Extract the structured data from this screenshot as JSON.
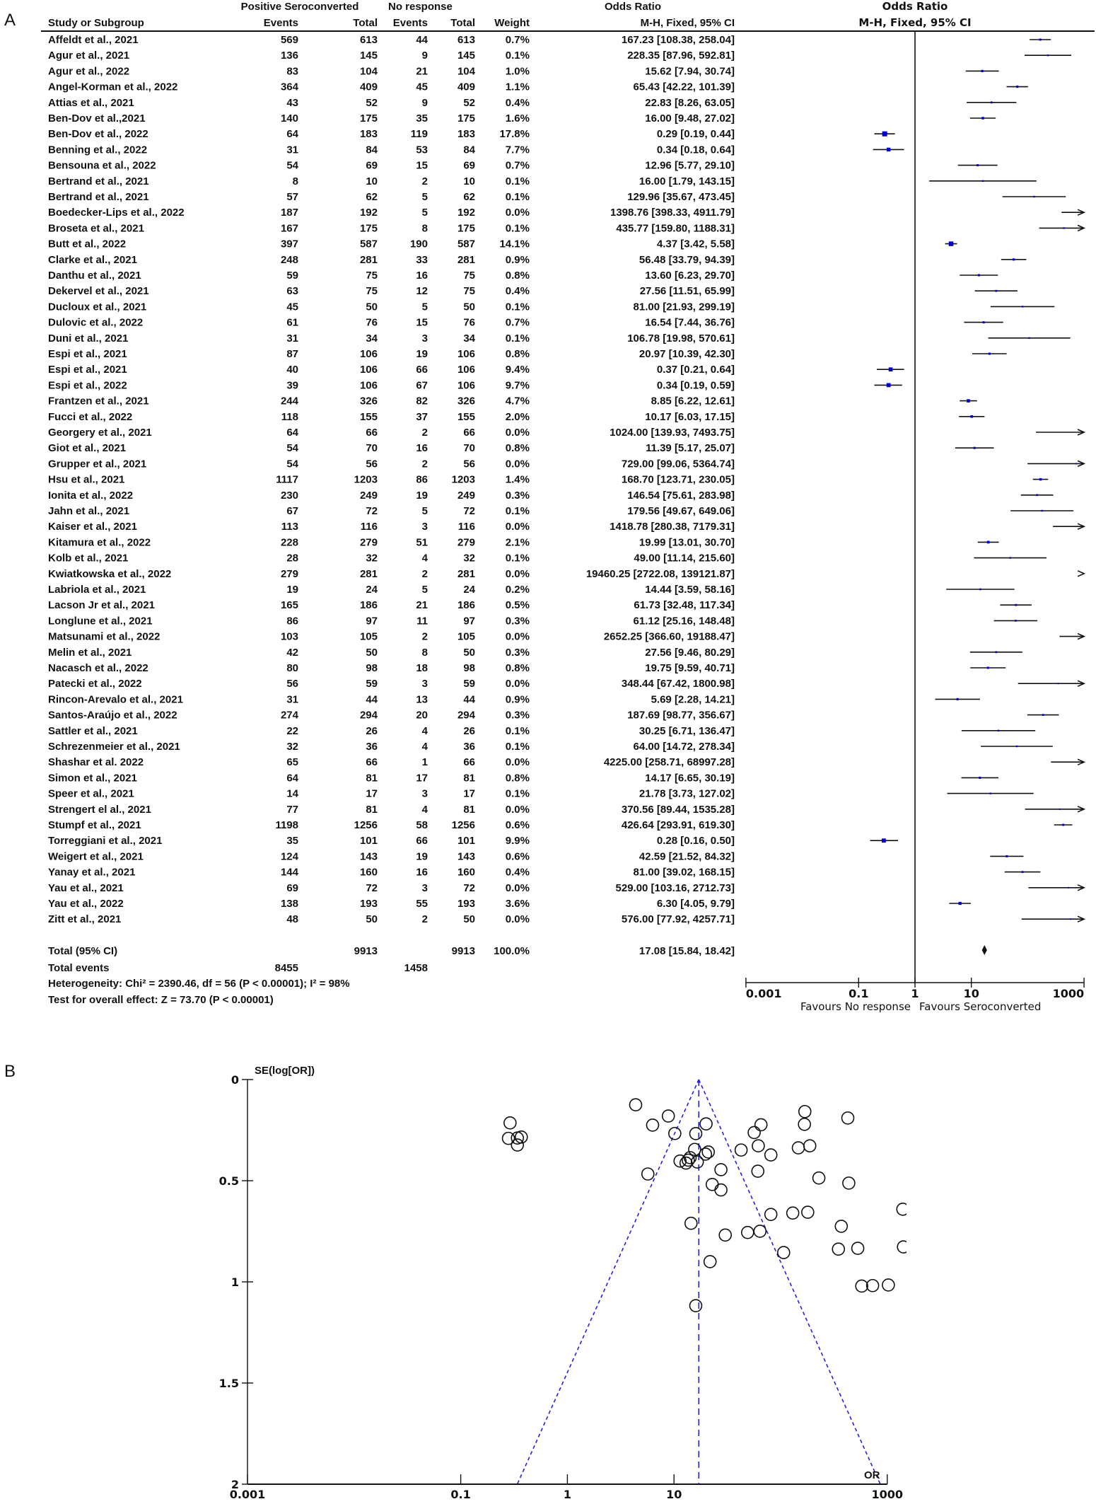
{
  "panels": {
    "a": "A",
    "b": "B"
  },
  "forest_header": {
    "group1": "Positive Seroconverted",
    "group2": "No response",
    "col_study": "Study or Subgroup",
    "col_events1": "Events",
    "col_total1": "Total",
    "col_events2": "Events",
    "col_total2": "Total",
    "col_weight": "Weight",
    "or_title": "Odds Ratio",
    "or_method": "M-H, Fixed, 95% CI",
    "plot_title": "Odds Ratio",
    "plot_method": "M-H, Fixed, 95% CI"
  },
  "summary": {
    "total_label": "Total (95% CI)",
    "total1": "9913",
    "total2": "9913",
    "weight": "100.0%",
    "or_text": "17.08 [15.84, 18.42]",
    "events_label": "Total events",
    "events1": "8455",
    "events2": "1458",
    "heterogeneity": "Heterogeneity: Chi² = 2390.46, df = 56 (P < 0.00001); I² = 98%",
    "overall": "Test for overall effect: Z = 73.70 (P < 0.00001)"
  },
  "colors": {
    "square": "#0000cc",
    "funnel_line": "#2222dd",
    "ink": "#111111"
  },
  "chart_data": [
    {
      "type": "forest",
      "x_scale": "log",
      "xlim": [
        0.001,
        1000
      ],
      "x_ticks": [
        "0.001",
        "0.1",
        "1",
        "10",
        "1000"
      ],
      "favours_left": "Favours No response",
      "favours_right": "Favours Seroconverted",
      "pooled": {
        "or": 17.08,
        "lo": 15.84,
        "hi": 18.42
      },
      "studies": [
        {
          "name": "Affeldt et al., 2021",
          "e1": 569,
          "n1": 613,
          "e2": 44,
          "n2": 613,
          "w": "0.7%",
          "or": 167.23,
          "lo": 108.38,
          "hi": 258.04
        },
        {
          "name": "Agur et al., 2021",
          "e1": 136,
          "n1": 145,
          "e2": 9,
          "n2": 145,
          "w": "0.1%",
          "or": 228.35,
          "lo": 87.96,
          "hi": 592.81
        },
        {
          "name": "Agur et al., 2022",
          "e1": 83,
          "n1": 104,
          "e2": 21,
          "n2": 104,
          "w": "1.0%",
          "or": 15.62,
          "lo": 7.94,
          "hi": 30.74
        },
        {
          "name": "Angel-Korman et al., 2022",
          "e1": 364,
          "n1": 409,
          "e2": 45,
          "n2": 409,
          "w": "1.1%",
          "or": 65.43,
          "lo": 42.22,
          "hi": 101.39
        },
        {
          "name": "Attias et al., 2021",
          "e1": 43,
          "n1": 52,
          "e2": 9,
          "n2": 52,
          "w": "0.4%",
          "or": 22.83,
          "lo": 8.26,
          "hi": 63.05
        },
        {
          "name": "Ben-Dov et al.,2021",
          "e1": 140,
          "n1": 175,
          "e2": 35,
          "n2": 175,
          "w": "1.6%",
          "or": 16.0,
          "lo": 9.48,
          "hi": 27.02
        },
        {
          "name": "Ben-Dov et al., 2022",
          "e1": 64,
          "n1": 183,
          "e2": 119,
          "n2": 183,
          "w": "17.8%",
          "or": 0.29,
          "lo": 0.19,
          "hi": 0.44
        },
        {
          "name": "Benning et al., 2022",
          "e1": 31,
          "n1": 84,
          "e2": 53,
          "n2": 84,
          "w": "7.7%",
          "or": 0.34,
          "lo": 0.18,
          "hi": 0.64
        },
        {
          "name": "Bensouna et al., 2022",
          "e1": 54,
          "n1": 69,
          "e2": 15,
          "n2": 69,
          "w": "0.7%",
          "or": 12.96,
          "lo": 5.77,
          "hi": 29.1
        },
        {
          "name": "Bertrand et al., 2021",
          "e1": 8,
          "n1": 10,
          "e2": 2,
          "n2": 10,
          "w": "0.1%",
          "or": 16.0,
          "lo": 1.79,
          "hi": 143.15
        },
        {
          "name": "Bertrand et al., 2021",
          "e1": 57,
          "n1": 62,
          "e2": 5,
          "n2": 62,
          "w": "0.1%",
          "or": 129.96,
          "lo": 35.67,
          "hi": 473.45
        },
        {
          "name": "Boedecker-Lips et al., 2022",
          "e1": 187,
          "n1": 192,
          "e2": 5,
          "n2": 192,
          "w": "0.0%",
          "or": 1398.76,
          "lo": 398.33,
          "hi": 4911.79
        },
        {
          "name": "Broseta et al., 2021",
          "e1": 167,
          "n1": 175,
          "e2": 8,
          "n2": 175,
          "w": "0.1%",
          "or": 435.77,
          "lo": 159.8,
          "hi": 1188.31
        },
        {
          "name": "Butt et al., 2022",
          "e1": 397,
          "n1": 587,
          "e2": 190,
          "n2": 587,
          "w": "14.1%",
          "or": 4.37,
          "lo": 3.42,
          "hi": 5.58
        },
        {
          "name": "Clarke et al., 2021",
          "e1": 248,
          "n1": 281,
          "e2": 33,
          "n2": 281,
          "w": "0.9%",
          "or": 56.48,
          "lo": 33.79,
          "hi": 94.39
        },
        {
          "name": "Danthu et al., 2021",
          "e1": 59,
          "n1": 75,
          "e2": 16,
          "n2": 75,
          "w": "0.8%",
          "or": 13.6,
          "lo": 6.23,
          "hi": 29.7
        },
        {
          "name": "Dekervel et al., 2021",
          "e1": 63,
          "n1": 75,
          "e2": 12,
          "n2": 75,
          "w": "0.4%",
          "or": 27.56,
          "lo": 11.51,
          "hi": 65.99
        },
        {
          "name": "Ducloux et al., 2021",
          "e1": 45,
          "n1": 50,
          "e2": 5,
          "n2": 50,
          "w": "0.1%",
          "or": 81.0,
          "lo": 21.93,
          "hi": 299.19
        },
        {
          "name": "Dulovic et al., 2022",
          "e1": 61,
          "n1": 76,
          "e2": 15,
          "n2": 76,
          "w": "0.7%",
          "or": 16.54,
          "lo": 7.44,
          "hi": 36.76
        },
        {
          "name": "Duni et al., 2021",
          "e1": 31,
          "n1": 34,
          "e2": 3,
          "n2": 34,
          "w": "0.1%",
          "or": 106.78,
          "lo": 19.98,
          "hi": 570.61
        },
        {
          "name": "Espi et al., 2021",
          "e1": 87,
          "n1": 106,
          "e2": 19,
          "n2": 106,
          "w": "0.8%",
          "or": 20.97,
          "lo": 10.39,
          "hi": 42.3
        },
        {
          "name": "Espi et al., 2021",
          "e1": 40,
          "n1": 106,
          "e2": 66,
          "n2": 106,
          "w": "9.4%",
          "or": 0.37,
          "lo": 0.21,
          "hi": 0.64
        },
        {
          "name": "Espi et al., 2022",
          "e1": 39,
          "n1": 106,
          "e2": 67,
          "n2": 106,
          "w": "9.7%",
          "or": 0.34,
          "lo": 0.19,
          "hi": 0.59
        },
        {
          "name": "Frantzen et al., 2021",
          "e1": 244,
          "n1": 326,
          "e2": 82,
          "n2": 326,
          "w": "4.7%",
          "or": 8.85,
          "lo": 6.22,
          "hi": 12.61
        },
        {
          "name": "Fucci et al., 2022",
          "e1": 118,
          "n1": 155,
          "e2": 37,
          "n2": 155,
          "w": "2.0%",
          "or": 10.17,
          "lo": 6.03,
          "hi": 17.15
        },
        {
          "name": "Georgery et al., 2021",
          "e1": 64,
          "n1": 66,
          "e2": 2,
          "n2": 66,
          "w": "0.0%",
          "or": 1024.0,
          "lo": 139.93,
          "hi": 7493.75
        },
        {
          "name": "Giot et al., 2021",
          "e1": 54,
          "n1": 70,
          "e2": 16,
          "n2": 70,
          "w": "0.8%",
          "or": 11.39,
          "lo": 5.17,
          "hi": 25.07
        },
        {
          "name": "Grupper et al., 2021",
          "e1": 54,
          "n1": 56,
          "e2": 2,
          "n2": 56,
          "w": "0.0%",
          "or": 729.0,
          "lo": 99.06,
          "hi": 5364.74
        },
        {
          "name": "Hsu et al., 2021",
          "e1": 1117,
          "n1": 1203,
          "e2": 86,
          "n2": 1203,
          "w": "1.4%",
          "or": 168.7,
          "lo": 123.71,
          "hi": 230.05
        },
        {
          "name": "Ionita et al., 2022",
          "e1": 230,
          "n1": 249,
          "e2": 19,
          "n2": 249,
          "w": "0.3%",
          "or": 146.54,
          "lo": 75.61,
          "hi": 283.98
        },
        {
          "name": "Jahn et al., 2021",
          "e1": 67,
          "n1": 72,
          "e2": 5,
          "n2": 72,
          "w": "0.1%",
          "or": 179.56,
          "lo": 49.67,
          "hi": 649.06
        },
        {
          "name": "Kaiser et al., 2021",
          "e1": 113,
          "n1": 116,
          "e2": 3,
          "n2": 116,
          "w": "0.0%",
          "or": 1418.78,
          "lo": 280.38,
          "hi": 7179.31
        },
        {
          "name": "Kitamura et al., 2022",
          "e1": 228,
          "n1": 279,
          "e2": 51,
          "n2": 279,
          "w": "2.1%",
          "or": 19.99,
          "lo": 13.01,
          "hi": 30.7
        },
        {
          "name": "Kolb et al., 2021",
          "e1": 28,
          "n1": 32,
          "e2": 4,
          "n2": 32,
          "w": "0.1%",
          "or": 49.0,
          "lo": 11.14,
          "hi": 215.6
        },
        {
          "name": "Kwiatkowska et al., 2022",
          "e1": 279,
          "n1": 281,
          "e2": 2,
          "n2": 281,
          "w": "0.0%",
          "or": 19460.25,
          "lo": 2722.08,
          "hi": 139121.87
        },
        {
          "name": "Labriola et al., 2021",
          "e1": 19,
          "n1": 24,
          "e2": 5,
          "n2": 24,
          "w": "0.2%",
          "or": 14.44,
          "lo": 3.59,
          "hi": 58.16
        },
        {
          "name": "Lacson Jr et al., 2021",
          "e1": 165,
          "n1": 186,
          "e2": 21,
          "n2": 186,
          "w": "0.5%",
          "or": 61.73,
          "lo": 32.48,
          "hi": 117.34
        },
        {
          "name": "Longlune et al., 2021",
          "e1": 86,
          "n1": 97,
          "e2": 11,
          "n2": 97,
          "w": "0.3%",
          "or": 61.12,
          "lo": 25.16,
          "hi": 148.48
        },
        {
          "name": "Matsunami et al., 2022",
          "e1": 103,
          "n1": 105,
          "e2": 2,
          "n2": 105,
          "w": "0.0%",
          "or": 2652.25,
          "lo": 366.6,
          "hi": 19188.47
        },
        {
          "name": "Melin et al., 2021",
          "e1": 42,
          "n1": 50,
          "e2": 8,
          "n2": 50,
          "w": "0.3%",
          "or": 27.56,
          "lo": 9.46,
          "hi": 80.29
        },
        {
          "name": "Nacasch et al., 2022",
          "e1": 80,
          "n1": 98,
          "e2": 18,
          "n2": 98,
          "w": "0.8%",
          "or": 19.75,
          "lo": 9.59,
          "hi": 40.71
        },
        {
          "name": "Patecki et al., 2022",
          "e1": 56,
          "n1": 59,
          "e2": 3,
          "n2": 59,
          "w": "0.0%",
          "or": 348.44,
          "lo": 67.42,
          "hi": 1800.98
        },
        {
          "name": "Rincon-Arevalo et al., 2021",
          "e1": 31,
          "n1": 44,
          "e2": 13,
          "n2": 44,
          "w": "0.9%",
          "or": 5.69,
          "lo": 2.28,
          "hi": 14.21
        },
        {
          "name": "Santos-Araújo et al., 2022",
          "e1": 274,
          "n1": 294,
          "e2": 20,
          "n2": 294,
          "w": "0.3%",
          "or": 187.69,
          "lo": 98.77,
          "hi": 356.67
        },
        {
          "name": "Sattler et al., 2021",
          "e1": 22,
          "n1": 26,
          "e2": 4,
          "n2": 26,
          "w": "0.1%",
          "or": 30.25,
          "lo": 6.71,
          "hi": 136.47
        },
        {
          "name": "Schrezenmeier et al., 2021",
          "e1": 32,
          "n1": 36,
          "e2": 4,
          "n2": 36,
          "w": "0.1%",
          "or": 64.0,
          "lo": 14.72,
          "hi": 278.34
        },
        {
          "name": "Shashar et al. 2022",
          "e1": 65,
          "n1": 66,
          "e2": 1,
          "n2": 66,
          "w": "0.0%",
          "or": 4225.0,
          "lo": 258.71,
          "hi": 68997.28
        },
        {
          "name": "Simon et al., 2021",
          "e1": 64,
          "n1": 81,
          "e2": 17,
          "n2": 81,
          "w": "0.8%",
          "or": 14.17,
          "lo": 6.65,
          "hi": 30.19
        },
        {
          "name": "Speer et al., 2021",
          "e1": 14,
          "n1": 17,
          "e2": 3,
          "n2": 17,
          "w": "0.1%",
          "or": 21.78,
          "lo": 3.73,
          "hi": 127.02
        },
        {
          "name": "Strengert el al., 2021",
          "e1": 77,
          "n1": 81,
          "e2": 4,
          "n2": 81,
          "w": "0.0%",
          "or": 370.56,
          "lo": 89.44,
          "hi": 1535.28
        },
        {
          "name": "Stumpf et al., 2021",
          "e1": 1198,
          "n1": 1256,
          "e2": 58,
          "n2": 1256,
          "w": "0.6%",
          "or": 426.64,
          "lo": 293.91,
          "hi": 619.3
        },
        {
          "name": "Torreggiani et al., 2021",
          "e1": 35,
          "n1": 101,
          "e2": 66,
          "n2": 101,
          "w": "9.9%",
          "or": 0.28,
          "lo": 0.16,
          "hi": 0.5
        },
        {
          "name": "Weigert et al., 2021",
          "e1": 124,
          "n1": 143,
          "e2": 19,
          "n2": 143,
          "w": "0.6%",
          "or": 42.59,
          "lo": 21.52,
          "hi": 84.32
        },
        {
          "name": "Yanay et al., 2021",
          "e1": 144,
          "n1": 160,
          "e2": 16,
          "n2": 160,
          "w": "0.4%",
          "or": 81.0,
          "lo": 39.02,
          "hi": 168.15
        },
        {
          "name": "Yau et al., 2021",
          "e1": 69,
          "n1": 72,
          "e2": 3,
          "n2": 72,
          "w": "0.0%",
          "or": 529.0,
          "lo": 103.16,
          "hi": 2712.73
        },
        {
          "name": "Yau et al., 2022",
          "e1": 138,
          "n1": 193,
          "e2": 55,
          "n2": 193,
          "w": "3.6%",
          "or": 6.3,
          "lo": 4.05,
          "hi": 9.79
        },
        {
          "name": "Zitt et al., 2021",
          "e1": 48,
          "n1": 50,
          "e2": 2,
          "n2": 50,
          "w": "0.0%",
          "or": 576.0,
          "lo": 77.92,
          "hi": 4257.71
        }
      ]
    },
    {
      "type": "scatter",
      "ylabel": "SE(log[OR])",
      "xlabel": "OR",
      "x_scale": "log",
      "xlim": [
        0.001,
        1000
      ],
      "ylim": [
        0,
        2
      ],
      "y_reversed": true,
      "x_ticks": [
        "0.001",
        "0.1",
        "1",
        "10",
        "1000"
      ],
      "y_ticks": [
        "0",
        "0.5",
        "1",
        "1.5",
        "2"
      ],
      "center_or": 17.08,
      "limits": "95% pseudo-confidence limits (dashed)",
      "points_from": "forest studies (OR, SE of log OR from 95% CI)"
    }
  ]
}
